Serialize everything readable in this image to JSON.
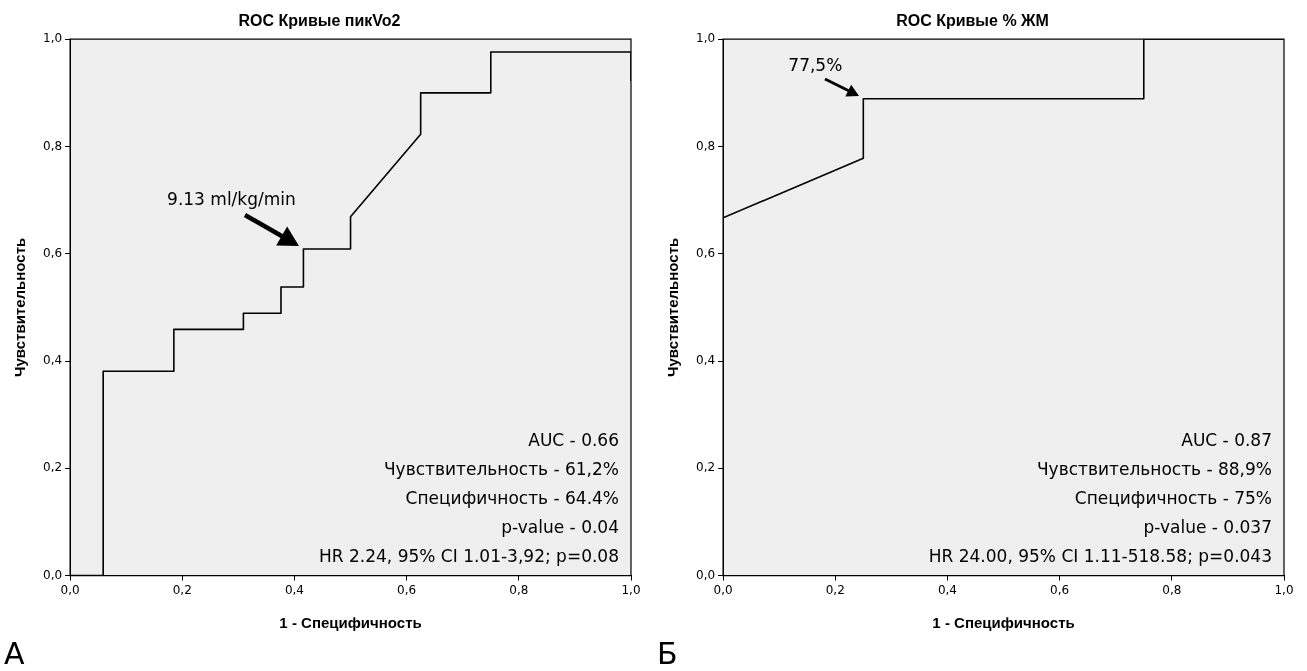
{
  "chart_data": [
    {
      "type": "line",
      "title": "ROC Кривые пикVo2",
      "xlabel": "1 - Специфичность",
      "ylabel": "Чувствительность",
      "series": [
        {
          "color": "#000000",
          "x": [
            0,
            0.059,
            0.059,
            0.185,
            0.185,
            0.309,
            0.309,
            0.376,
            0.376,
            0.416,
            0.416,
            0.5,
            0.5,
            0.625,
            0.625,
            0.75,
            0.75,
            1,
            1
          ],
          "values": [
            0,
            0,
            0.381,
            0.381,
            0.459,
            0.459,
            0.489,
            0.489,
            0.538,
            0.538,
            0.609,
            0.609,
            0.669,
            0.823,
            0.9,
            0.9,
            0.976,
            0.976,
            0.923
          ]
        }
      ],
      "xlim": [
        0,
        1
      ],
      "ylim": [
        0,
        1
      ],
      "xticks": [
        {
          "value": 0,
          "label": "0,0"
        },
        {
          "value": 0.2,
          "label": "0,2"
        },
        {
          "value": 0.4,
          "label": "0,4"
        },
        {
          "value": 0.6,
          "label": "0,6"
        },
        {
          "value": 0.8,
          "label": "0,8"
        },
        {
          "value": 1,
          "label": "1,0"
        }
      ],
      "yticks": [
        {
          "value": 0,
          "label": "0,0"
        },
        {
          "value": 0.2,
          "label": "0,2"
        },
        {
          "value": 0.4,
          "label": "0,4"
        },
        {
          "value": 0.6,
          "label": "0,6"
        },
        {
          "value": 0.8,
          "label": "0,8"
        },
        {
          "value": 1,
          "label": "1,0"
        }
      ],
      "marker": "none",
      "line_style": "solid",
      "annotations": [
        "А",
        "AUC - 0.66",
        "Чувствительность - 61,2%",
        "Специфичность - 64.4%",
        "p-value - 0.04",
        "HR 2.24, 95% CI 1.01-3,92; p=0.08",
        {
          "text": "9.13 ml/kg/min",
          "x": 0.416,
          "y": 0.609
        }
      ]
    },
    {
      "type": "line",
      "title": "ROC Кривые % ЖМ",
      "xlabel": "1 - Специфичность",
      "ylabel": "Чувствительность",
      "series": [
        {
          "color": "#000000",
          "x": [
            0,
            0,
            0.25,
            0.25,
            0.75,
            0.75,
            1
          ],
          "values": [
            0,
            0.667,
            0.778,
            0.889,
            0.889,
            1,
            1
          ]
        }
      ],
      "xlim": [
        0,
        1
      ],
      "ylim": [
        0,
        1
      ],
      "xticks": [
        {
          "value": 0,
          "label": "0,0"
        },
        {
          "value": 0.2,
          "label": "0,2"
        },
        {
          "value": 0.4,
          "label": "0,4"
        },
        {
          "value": 0.6,
          "label": "0,6"
        },
        {
          "value": 0.8,
          "label": "0,8"
        },
        {
          "value": 1,
          "label": "1,0"
        }
      ],
      "yticks": [
        {
          "value": 0,
          "label": "0,0"
        },
        {
          "value": 0.2,
          "label": "0,2"
        },
        {
          "value": 0.4,
          "label": "0,4"
        },
        {
          "value": 0.6,
          "label": "0,6"
        },
        {
          "value": 0.8,
          "label": "0,8"
        },
        {
          "value": 1,
          "label": "1,0"
        }
      ],
      "marker": "none",
      "line_style": "solid",
      "annotations": [
        "Б",
        "AUC - 0.87",
        "Чувствительность - 88,9%",
        "Специфичность - 75%",
        "p-value - 0.037",
        "HR 24.00, 95% CI 1.11-518.58; p=0.043",
        {
          "text": "77,5%",
          "x": 0.25,
          "y": 0.889
        }
      ]
    }
  ]
}
